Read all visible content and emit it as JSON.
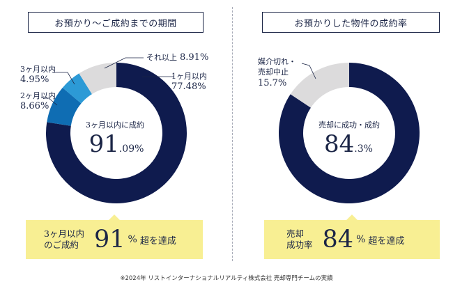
{
  "colors": {
    "navy": "#0f1b4e",
    "blue": "#0f6db3",
    "light_blue": "#2c9ad6",
    "grey": "#dcdbdc",
    "banner": "#f8ef93"
  },
  "chart_data": [
    {
      "type": "pie",
      "title": "お預かり〜ご成約までの期間",
      "categories": [
        "1ヶ月以内",
        "2ヶ月以内",
        "3ヶ月以内",
        "それ以上"
      ],
      "values": [
        77.48,
        8.66,
        4.95,
        8.91
      ],
      "value_labels": [
        "77.48%",
        "8.66%",
        "4.95%",
        "8.91%"
      ],
      "center_caption": "3ヶ月以内に成約",
      "center_value_int": "91",
      "center_value_dec": ".09%"
    },
    {
      "type": "pie",
      "title": "お預かりした物件の成約率",
      "categories": [
        "売却に成功・成約",
        "媒介切れ・売却中止"
      ],
      "label_lines": [
        [],
        [
          "媒介切れ・",
          "売却中止"
        ]
      ],
      "values": [
        84.3,
        15.7
      ],
      "value_labels": [
        "84.3%",
        "15.7%"
      ],
      "center_caption": "売却に成功・成約",
      "center_value_int": "84",
      "center_value_dec": ".3%"
    }
  ],
  "banner_left": {
    "line1": "3ヶ月以内",
    "line2": "のご成約",
    "big": "91",
    "unit": "%",
    "tail": "超を達成"
  },
  "banner_right": {
    "line1": "売却",
    "line2": "成功率",
    "big": "84",
    "unit": "%",
    "tail": "超を達成"
  },
  "footnote": "※2024年 リストインターナショナルリアルティ株式会社 売却専門チームの実績"
}
